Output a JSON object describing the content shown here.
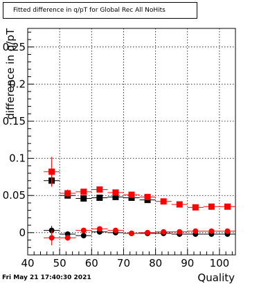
{
  "chart_data": {
    "type": "scatter",
    "title": "Fitted difference in q/pT for Global Rec All NoHits",
    "xlabel": "Quality",
    "ylabel": "difference in q/pT",
    "xlim": [
      40,
      105
    ],
    "ylim": [
      -0.03,
      0.275
    ],
    "x_ticks": [
      "40",
      "50",
      "60",
      "70",
      "80",
      "90",
      "100"
    ],
    "y_ticks": [
      "0",
      "0.05",
      "0.1",
      "0.15",
      "0.2",
      "0.25"
    ],
    "grid": true,
    "x_error_halfwidth": 2.5,
    "series": [
      {
        "color": "#000000",
        "marker": "square",
        "x": [
          47.5,
          52.5,
          57.5,
          62.5,
          67.5,
          72.5,
          77.5
        ],
        "y": [
          0.07,
          0.05,
          0.046,
          0.047,
          0.048,
          0.047,
          0.044
        ],
        "yerr": [
          0.008,
          0.003,
          0.003,
          0.003,
          0.002,
          0.002,
          0.002
        ]
      },
      {
        "color": "#ff0000",
        "marker": "square",
        "x": [
          47.5,
          52.5,
          57.5,
          62.5,
          67.5,
          72.5,
          77.5,
          82.5,
          87.5,
          92.5,
          97.5,
          102.5
        ],
        "y": [
          0.082,
          0.053,
          0.055,
          0.058,
          0.054,
          0.051,
          0.048,
          0.042,
          0.038,
          0.034,
          0.035,
          0.035
        ],
        "yerr": [
          0.02,
          0.005,
          0.004,
          0.004,
          0.003,
          0.003,
          0.002,
          0.002,
          0.002,
          0.002,
          0.002,
          0.002
        ]
      },
      {
        "color": "#000000",
        "marker": "circle",
        "x": [
          47.5,
          52.5,
          57.5,
          62.5,
          67.5,
          72.5,
          77.5,
          82.5,
          87.5,
          92.5,
          97.5,
          102.5
        ],
        "y": [
          0.003,
          -0.002,
          -0.004,
          0.001,
          0.0,
          -0.001,
          -0.001,
          -0.001,
          -0.002,
          -0.002,
          -0.002,
          -0.002
        ],
        "yerr": [
          0.006,
          0.003,
          0.002,
          0.002,
          0.002,
          0.001,
          0.001,
          0.001,
          0.001,
          0.001,
          0.001,
          0.001
        ]
      },
      {
        "color": "#ff0000",
        "marker": "circle",
        "x": [
          47.5,
          52.5,
          57.5,
          62.5,
          67.5,
          72.5,
          77.5,
          82.5,
          87.5,
          92.5,
          97.5,
          102.5
        ],
        "y": [
          -0.007,
          -0.007,
          0.003,
          0.005,
          0.003,
          -0.001,
          0.0,
          0.001,
          0.001,
          0.002,
          0.002,
          0.002
        ],
        "yerr": [
          0.01,
          0.004,
          0.003,
          0.003,
          0.002,
          0.002,
          0.002,
          0.002,
          0.001,
          0.001,
          0.001,
          0.001
        ]
      }
    ]
  },
  "footer": {
    "datestamp": "Fri May 21 17:40:30 2021"
  }
}
